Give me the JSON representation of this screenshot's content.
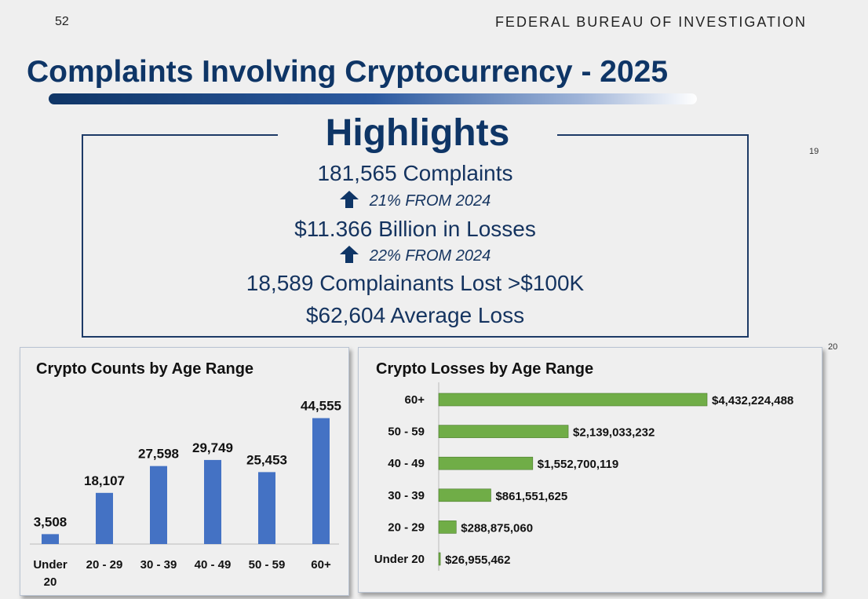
{
  "header": {
    "page_number": "52",
    "agency": "FEDERAL BUREAU OF INVESTIGATION"
  },
  "title": "Complaints Involving Cryptocurrency - 2025",
  "highlights": {
    "heading": "Highlights",
    "complaints": "181,565 Complaints",
    "complaints_change": "21% FROM 2024",
    "losses": "$11.366 Billion in Losses",
    "losses_change": "22% FROM 2024",
    "over_100k": "18,589 Complainants Lost >$100K",
    "average": "$62,604 Average Loss"
  },
  "side_numbers": {
    "a": "19",
    "b": "20"
  },
  "colors": {
    "navy": "#0e3566",
    "bar_blue": "#4472c4",
    "bar_green": "#70ad47"
  },
  "chart_data": [
    {
      "type": "bar",
      "title": "Crypto Counts by Age Range",
      "categories": [
        [
          "Under",
          "20"
        ],
        [
          "20 - 29"
        ],
        [
          "30 - 39"
        ],
        [
          "40 - 49"
        ],
        [
          "50 - 59"
        ],
        [
          "60+"
        ]
      ],
      "values": [
        3508,
        18107,
        27598,
        29749,
        25453,
        44555
      ],
      "value_labels": [
        "3,508",
        "18,107",
        "27,598",
        "29,749",
        "25,453",
        "44,555"
      ],
      "ylim": [
        0,
        50000
      ],
      "xlabel": "",
      "ylabel": ""
    },
    {
      "type": "bar",
      "orientation": "horizontal",
      "title": "Crypto Losses by Age Range",
      "categories": [
        "60+",
        "50 - 59",
        "40 - 49",
        "30 - 39",
        "20 - 29",
        "Under 20"
      ],
      "values": [
        4432224488,
        2139033232,
        1552700119,
        861551625,
        288875060,
        26955462
      ],
      "value_labels": [
        "$4,432,224,488",
        "$2,139,033,232",
        "$1,552,700,119",
        "$861,551,625",
        "$288,875,060",
        "$26,955,462"
      ],
      "xlim": [
        0,
        4432224488
      ],
      "xlabel": "",
      "ylabel": ""
    }
  ]
}
